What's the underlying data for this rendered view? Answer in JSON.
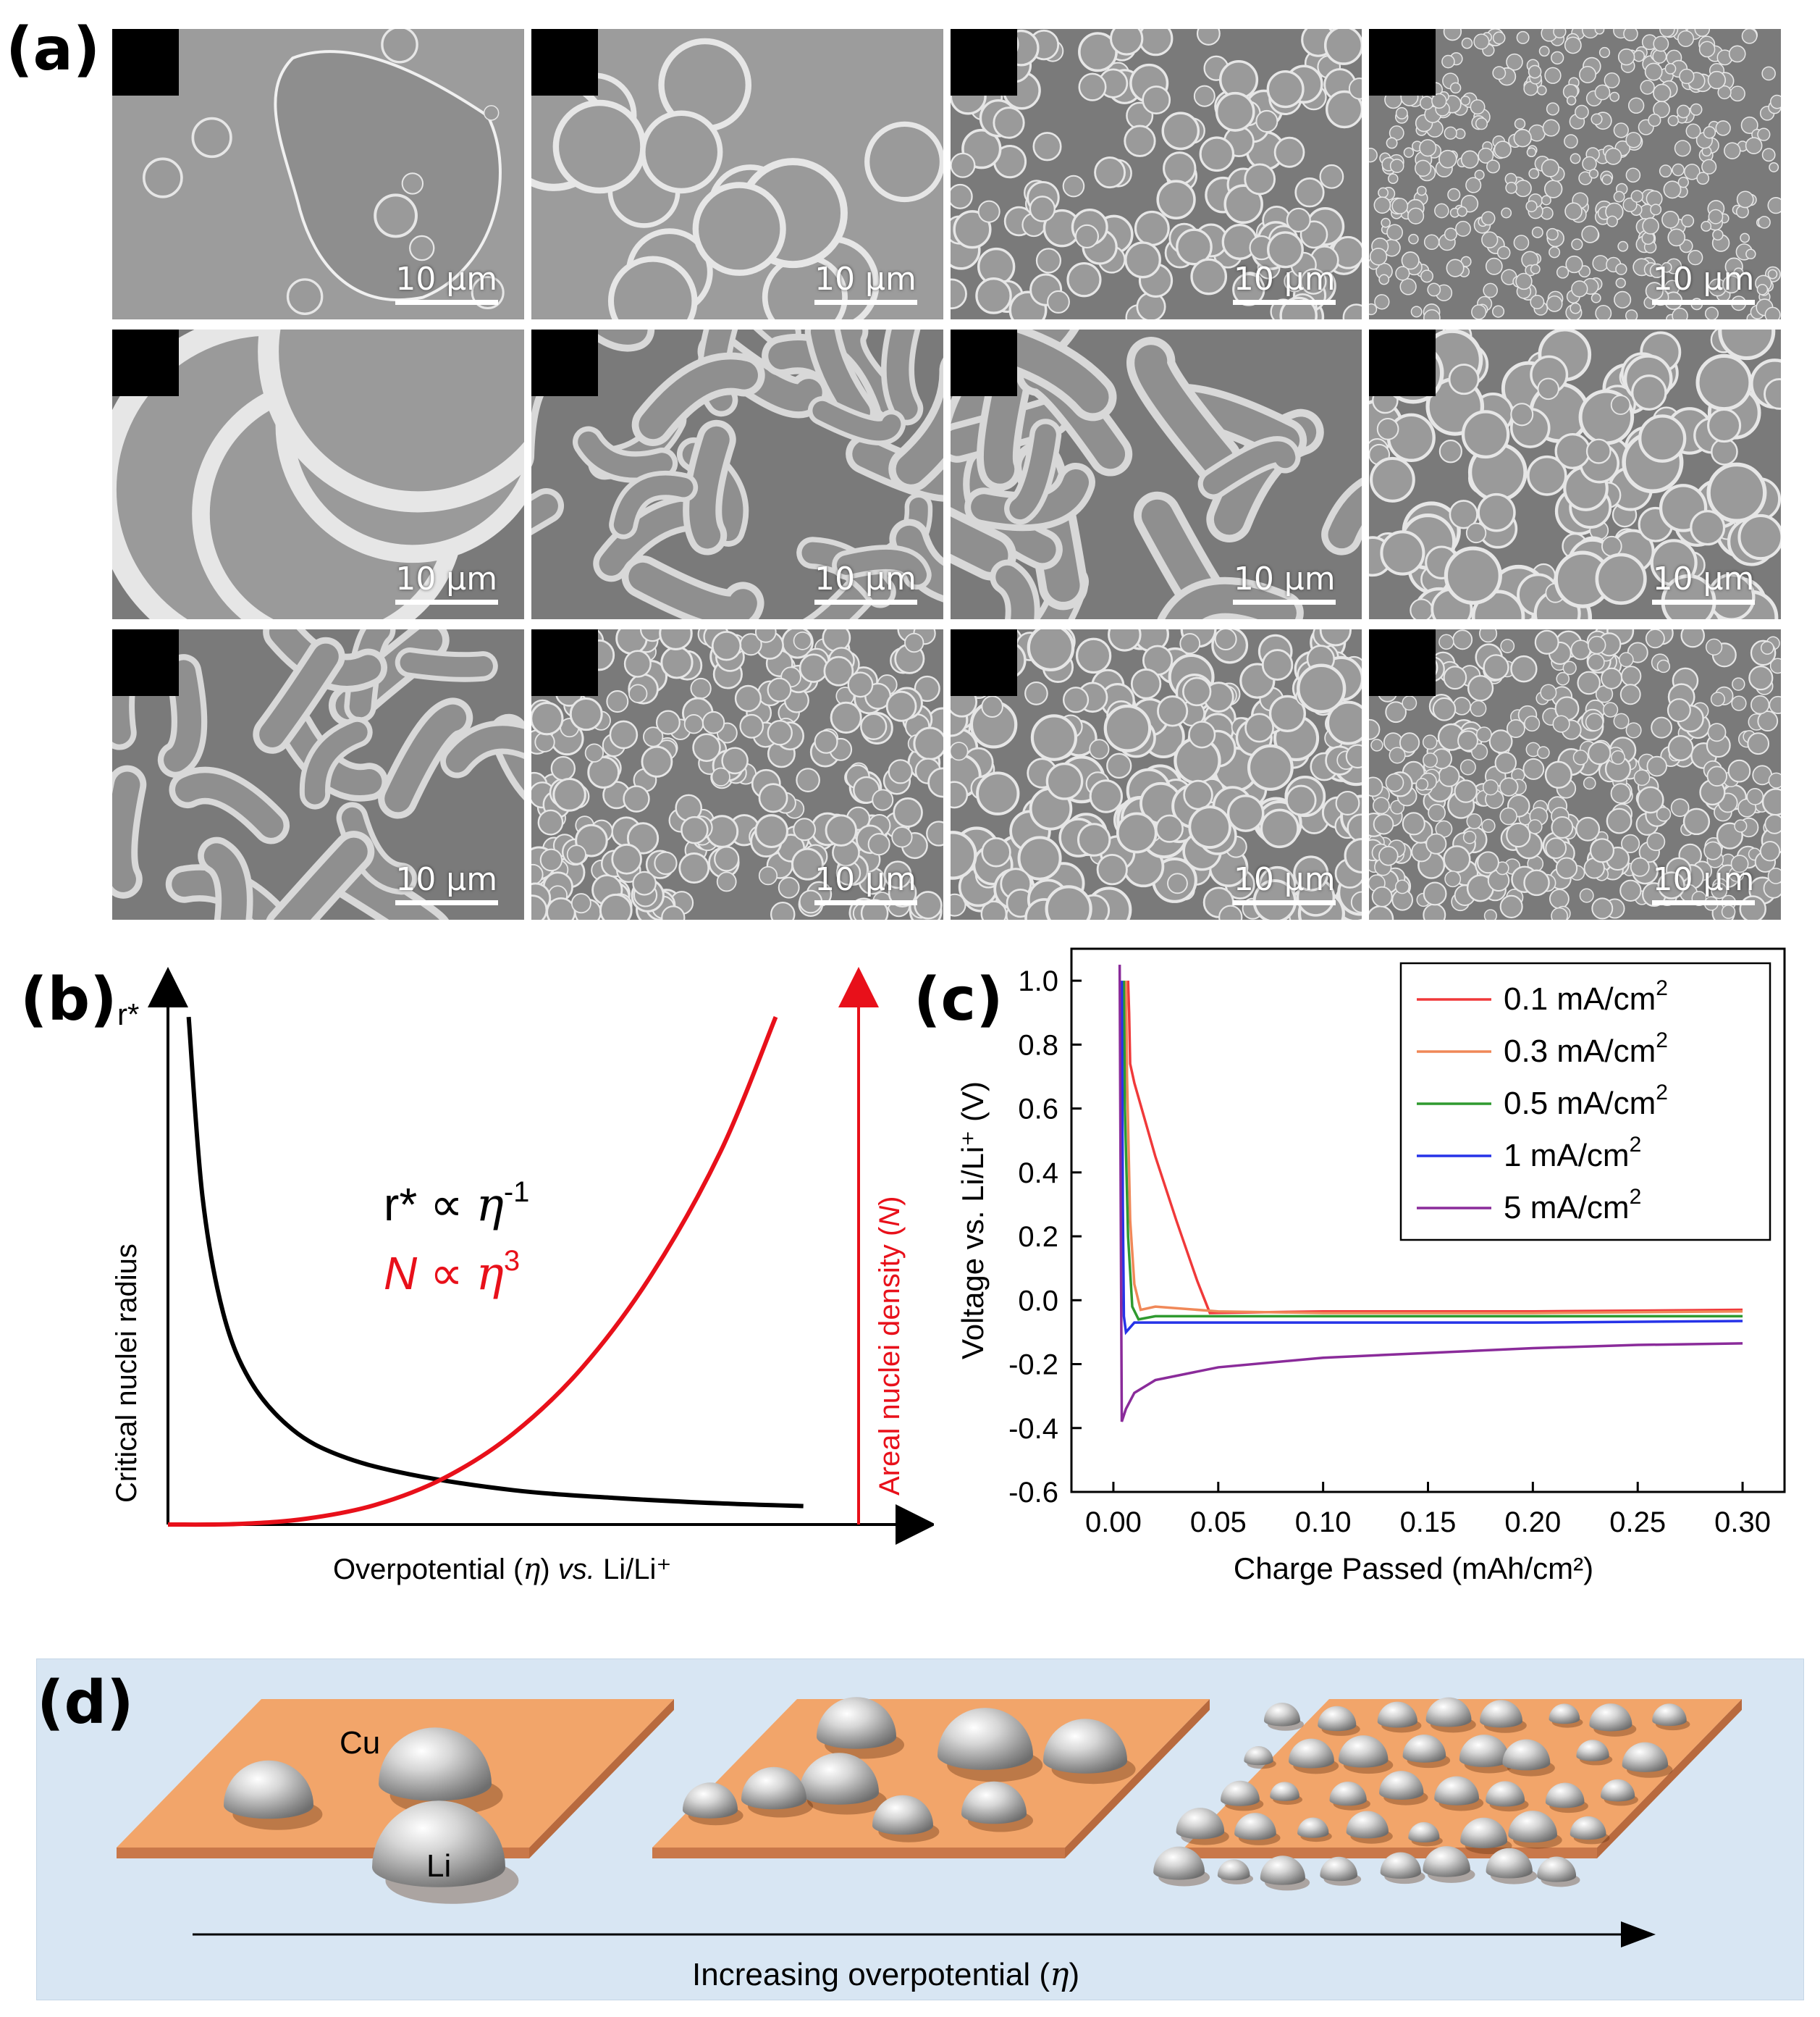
{
  "panels": {
    "a": {
      "label": "(a)",
      "scale_bar": "10 µm",
      "tiles": [
        {
          "id": "r1c1"
        },
        {
          "id": "r1c2"
        },
        {
          "id": "r1c3"
        },
        {
          "id": "r1c4"
        },
        {
          "id": "r2c1"
        },
        {
          "id": "r2c2"
        },
        {
          "id": "r2c3"
        },
        {
          "id": "r2c4"
        },
        {
          "id": "r3c1"
        },
        {
          "id": "r3c2"
        },
        {
          "id": "r3c3"
        },
        {
          "id": "r3c4"
        }
      ]
    },
    "b": {
      "label": "(b)",
      "y_left_symbol": "r*",
      "y_left_label": "Critical nuclei radius",
      "y_right_label_main": "Areal nuclei density (",
      "y_right_label_var": "N",
      "y_right_label_end": ")",
      "x_label_main": "Overpotential (",
      "x_label_var": "η",
      "x_label_mid": ") ",
      "x_label_vs": "vs.",
      "x_label_end": " Li/Li⁺",
      "eq1_main": "r* ∝ ",
      "eq1_var": "η",
      "eq1_exp": "-1",
      "eq2_var": "N",
      "eq2_main": " ∝ ",
      "eq2_var2": "η",
      "eq2_exp": "3",
      "colors": {
        "r_curve": "#000000",
        "n_curve": "#e8101a"
      }
    },
    "c": {
      "label": "(c)",
      "legend_unit": "mA/cm",
      "legend_sup": "2"
    },
    "d": {
      "label": "(d)",
      "label_cu": "Cu",
      "label_li": "Li",
      "arrow_label_main": "Increasing overpotential (",
      "arrow_label_var": "η",
      "arrow_label_end": ")",
      "colors": {
        "background": "#d8e6f3",
        "substrate": "#f2a56a",
        "substrate_side": "#c9784a"
      }
    }
  },
  "chart_data": [
    {
      "type": "line",
      "panel": "b",
      "title": "",
      "xlabel": "Overpotential (η) vs. Li/Li⁺",
      "ylabel": "Critical nuclei radius",
      "y2label": "Areal nuclei density (N)",
      "xlim": [
        0,
        1
      ],
      "ylim": [
        0,
        1
      ],
      "series": [
        {
          "name": "r* ∝ η^-1",
          "color": "#000000",
          "x": [
            0.03,
            0.05,
            0.08,
            0.12,
            0.18,
            0.25,
            0.35,
            0.5,
            0.65,
            0.8,
            0.92
          ],
          "y": [
            0.96,
            0.62,
            0.4,
            0.27,
            0.18,
            0.13,
            0.095,
            0.065,
            0.05,
            0.04,
            0.035
          ]
        },
        {
          "name": "N ∝ η^3",
          "color": "#e8101a",
          "x": [
            0.0,
            0.1,
            0.2,
            0.3,
            0.4,
            0.5,
            0.6,
            0.7,
            0.8,
            0.88
          ],
          "y": [
            0.0,
            0.001,
            0.011,
            0.037,
            0.088,
            0.172,
            0.297,
            0.472,
            0.705,
            0.96
          ]
        }
      ]
    },
    {
      "type": "line",
      "panel": "c",
      "title": "",
      "xlabel": "Charge Passed (mAh/cm²)",
      "ylabel": "Voltage vs. Li/Li⁺ (V)",
      "xlim": [
        -0.02,
        0.32
      ],
      "ylim": [
        -0.6,
        1.1
      ],
      "xticks": [
        "0.00",
        "0.05",
        "0.10",
        "0.15",
        "0.20",
        "0.25",
        "0.30"
      ],
      "yticks": [
        "-0.6",
        "-0.4",
        "-0.2",
        "0.0",
        "0.2",
        "0.4",
        "0.6",
        "0.8",
        "1.0"
      ],
      "legend_position": "top-right",
      "series": [
        {
          "name": "0.1 mA/cm²",
          "color": "#f0393a",
          "x": [
            0.007,
            0.0075,
            0.008,
            0.01,
            0.02,
            0.03,
            0.04,
            0.046,
            0.1,
            0.2,
            0.3
          ],
          "y": [
            1.0,
            0.9,
            0.74,
            0.68,
            0.45,
            0.25,
            0.06,
            -0.04,
            -0.035,
            -0.035,
            -0.03
          ]
        },
        {
          "name": "0.3 mA/cm²",
          "color": "#f08858",
          "x": [
            0.006,
            0.0065,
            0.008,
            0.01,
            0.013,
            0.02,
            0.05,
            0.1,
            0.2,
            0.3
          ],
          "y": [
            1.0,
            0.7,
            0.25,
            0.05,
            -0.03,
            -0.02,
            -0.035,
            -0.04,
            -0.04,
            -0.035
          ]
        },
        {
          "name": "0.5 mA/cm²",
          "color": "#2f9a2f",
          "x": [
            0.005,
            0.0055,
            0.007,
            0.009,
            0.012,
            0.02,
            0.05,
            0.1,
            0.2,
            0.3
          ],
          "y": [
            1.0,
            0.6,
            0.2,
            -0.02,
            -0.06,
            -0.05,
            -0.05,
            -0.05,
            -0.05,
            -0.05
          ]
        },
        {
          "name": "1 mA/cm²",
          "color": "#2633e8",
          "x": [
            0.004,
            0.0045,
            0.005,
            0.006,
            0.01,
            0.05,
            0.1,
            0.2,
            0.3
          ],
          "y": [
            1.0,
            0.3,
            -0.05,
            -0.1,
            -0.07,
            -0.07,
            -0.07,
            -0.07,
            -0.065
          ]
        },
        {
          "name": "5 mA/cm²",
          "color": "#8a2b9a",
          "x": [
            0.003,
            0.0035,
            0.004,
            0.006,
            0.01,
            0.02,
            0.05,
            0.1,
            0.15,
            0.2,
            0.25,
            0.3
          ],
          "y": [
            1.05,
            0.3,
            -0.38,
            -0.34,
            -0.29,
            -0.25,
            -0.21,
            -0.18,
            -0.165,
            -0.15,
            -0.14,
            -0.135
          ]
        }
      ]
    }
  ]
}
